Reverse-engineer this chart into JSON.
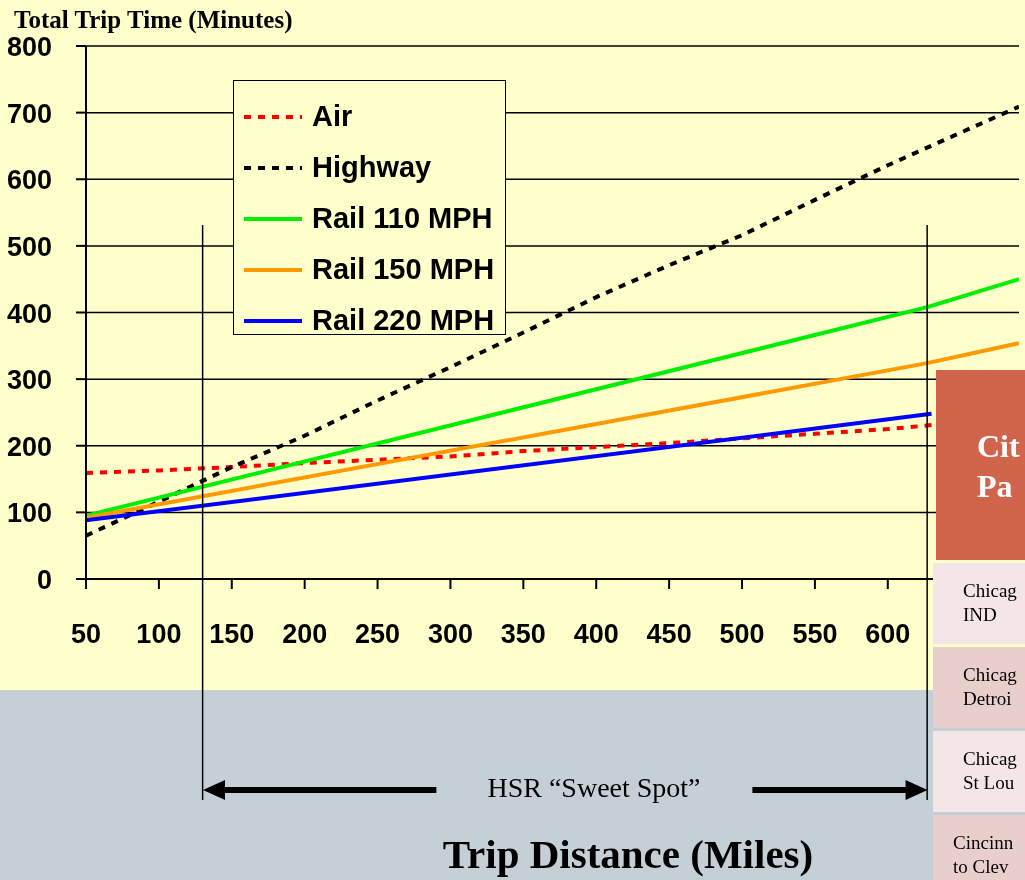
{
  "chart_data": {
    "type": "line",
    "title": "Total Trip Time (Minutes)",
    "xlabel": "Trip Distance (Miles)",
    "xlim": [
      50,
      690
    ],
    "xticks": [
      50,
      100,
      150,
      200,
      250,
      300,
      350,
      400,
      450,
      500,
      550,
      600
    ],
    "ylim": [
      0,
      800
    ],
    "yticks": [
      0,
      100,
      200,
      300,
      400,
      500,
      600,
      700,
      800
    ],
    "grid": "y",
    "legend": "top left",
    "marker": "none",
    "series": [
      {
        "name": "Air",
        "color": "#ff0000",
        "line_style": "dashed",
        "x": [
          50,
          100,
          150,
          200,
          250,
          300,
          350,
          400,
          450,
          500,
          550,
          600,
          630
        ],
        "values": [
          159,
          163,
          168,
          174,
          179,
          184,
          192,
          198,
          204,
          211,
          218,
          225,
          231
        ]
      },
      {
        "name": "Highway",
        "color": "#000000",
        "line_style": "dashed",
        "x": [
          50,
          100,
          150,
          200,
          250,
          300,
          350,
          400,
          450,
          500,
          550,
          600,
          650,
          690
        ],
        "values": [
          65,
          116,
          168,
          215,
          268,
          318,
          370,
          423,
          471,
          516,
          569,
          621,
          670,
          709
        ]
      },
      {
        "name": "Rail 110 MPH",
        "color": "#00ee00",
        "line_style": "solid",
        "x": [
          50,
          627,
          690
        ],
        "values": [
          95,
          408,
          450
        ]
      },
      {
        "name": "Rail 150 MPH",
        "color": "#ff9900",
        "line_style": "solid",
        "x": [
          50,
          627,
          690
        ],
        "values": [
          92,
          324,
          354
        ]
      },
      {
        "name": "Rail 220 MPH",
        "color": "#0000ff",
        "line_style": "solid",
        "x": [
          50,
          630
        ],
        "values": [
          88,
          248
        ]
      }
    ],
    "ref_lines": [
      {
        "axis": "x",
        "value": 130
      },
      {
        "axis": "x",
        "value": 627
      }
    ],
    "annotations": [
      "HSR “Sweet Spot”",
      "Cit\nPa",
      "Chicag\nIND",
      "Chicag\nDetroi",
      "Chicag\nSt Lou",
      "Cincinn\nto Clev"
    ]
  }
}
